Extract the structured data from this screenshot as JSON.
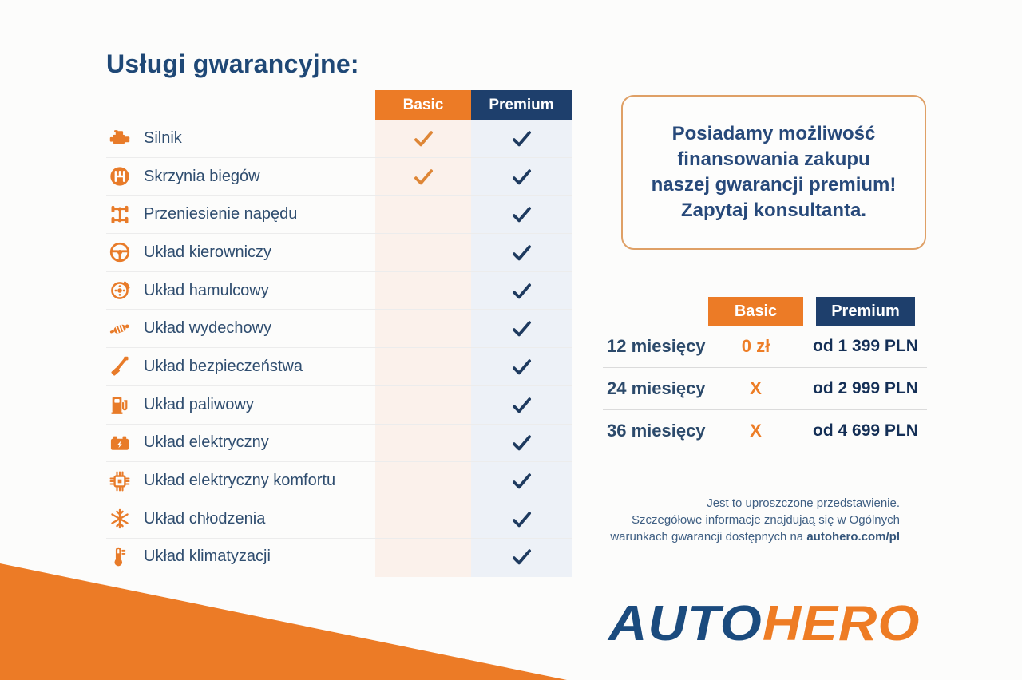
{
  "title": "Usługi gwarancyjne:",
  "colors": {
    "orange": "#EC7B26",
    "navy": "#1E3F6C",
    "check_orange": "#DE8636",
    "check_navy": "#1E3A5F",
    "basic_column_tint": "#FBF1EB",
    "premium_column_tint": "#EDF1F7",
    "logo_auto": "#1B4B7E",
    "logo_hero": "#EE7C24"
  },
  "services_table": {
    "columns": [
      "Basic",
      "Premium"
    ],
    "rows": [
      {
        "icon": "engine-icon",
        "label": "Silnik",
        "basic": true,
        "premium": true
      },
      {
        "icon": "gearbox-icon",
        "label": "Skrzynia biegów",
        "basic": true,
        "premium": true
      },
      {
        "icon": "drivetrain-icon",
        "label": "Przeniesienie napędu",
        "basic": false,
        "premium": true
      },
      {
        "icon": "steering-wheel-icon",
        "label": "Układ kierowniczy",
        "basic": false,
        "premium": true
      },
      {
        "icon": "brake-icon",
        "label": "Układ hamulcowy",
        "basic": false,
        "premium": true
      },
      {
        "icon": "exhaust-icon",
        "label": "Układ wydechowy",
        "basic": false,
        "premium": true
      },
      {
        "icon": "seatbelt-icon",
        "label": "Układ bezpieczeństwa",
        "basic": false,
        "premium": true
      },
      {
        "icon": "fuel-pump-icon",
        "label": "Układ paliwowy",
        "basic": false,
        "premium": true
      },
      {
        "icon": "battery-icon",
        "label": "Układ elektryczny",
        "basic": false,
        "premium": true
      },
      {
        "icon": "chip-icon",
        "label": "Układ elektryczny komfortu",
        "basic": false,
        "premium": true
      },
      {
        "icon": "snowflake-icon",
        "label": "Układ chłodzenia",
        "basic": false,
        "premium": true
      },
      {
        "icon": "thermometer-icon",
        "label": "Układ klimatyzacji",
        "basic": false,
        "premium": true
      }
    ]
  },
  "promo_box": {
    "lines": [
      "Posiadamy możliwość",
      "finansowania zakupu",
      "naszej gwarancji premium!",
      "Zapytaj konsultanta."
    ]
  },
  "pricing_table": {
    "columns": [
      "Basic",
      "Premium"
    ],
    "rows": [
      {
        "term": "12 miesięcy",
        "basic": "0 zł",
        "premium": "od 1 399 PLN"
      },
      {
        "term": "24 miesięcy",
        "basic": "X",
        "premium": "od 2 999 PLN"
      },
      {
        "term": "36 miesięcy",
        "basic": "X",
        "premium": "od 4 699 PLN"
      }
    ]
  },
  "disclaimer": {
    "line1": "Jest to uproszczone przedstawienie.",
    "line2": "Szczegółowe informacje znajdujaą się w Ogólnych",
    "line3_prefix": "warunkach gwarancji dostępnych na ",
    "line3_bold": "autohero.com/pl"
  },
  "logo": {
    "auto": "AUTO",
    "hero": "HERO"
  }
}
